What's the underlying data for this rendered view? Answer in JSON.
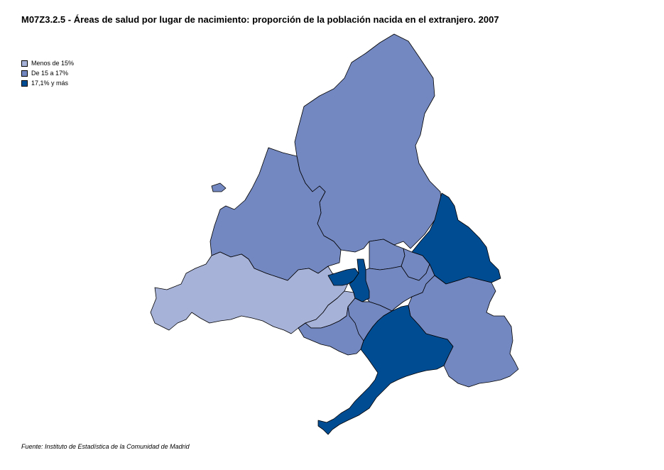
{
  "title": "M07Z3.2.5 - Áreas de salud por lugar de nacimiento: proporción de la población nacida en el extranjero. 2007",
  "legend": [
    {
      "label": "Menos de 15%",
      "color": "#a7b2d9"
    },
    {
      "label": "De 15 a 17%",
      "color": "#7387c0"
    },
    {
      "label": "17,1% y más",
      "color": "#004c93"
    }
  ],
  "source": "Fuente: Instituto de Estadística de la Comunidad de Madrid",
  "regions": [
    {
      "id": "north",
      "class": 1
    },
    {
      "id": "northwest",
      "class": 1
    },
    {
      "id": "islet",
      "class": 1
    },
    {
      "id": "west",
      "class": 0
    },
    {
      "id": "southwest-inner",
      "class": 0
    },
    {
      "id": "southwest",
      "class": 1
    },
    {
      "id": "east",
      "class": 2
    },
    {
      "id": "center-north-1",
      "class": 1
    },
    {
      "id": "center-north-2",
      "class": 1
    },
    {
      "id": "center",
      "class": 1
    },
    {
      "id": "capital-west",
      "class": 2
    },
    {
      "id": "capital-core",
      "class": 2
    },
    {
      "id": "south-center",
      "class": 1
    },
    {
      "id": "southeast",
      "class": 1
    },
    {
      "id": "south",
      "class": 2
    }
  ]
}
